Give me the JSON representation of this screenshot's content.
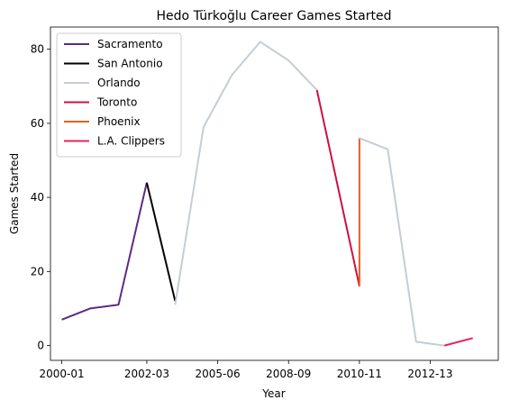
{
  "chart_data": {
    "type": "line",
    "title": "Hedo Türkoğlu Career Games Started",
    "xlabel": "Year",
    "ylabel": "Games Started",
    "xlim": [
      -0.4,
      15.4
    ],
    "ylim": [
      -4,
      86
    ],
    "y_ticks": [
      0,
      20,
      40,
      60,
      80
    ],
    "x_ticks": [
      {
        "pos": 0,
        "label": "2000-01"
      },
      {
        "pos": 3,
        "label": "2002-03"
      },
      {
        "pos": 5.5,
        "label": "2005-06"
      },
      {
        "pos": 8,
        "label": "2008-09"
      },
      {
        "pos": 10.5,
        "label": "2010-11"
      },
      {
        "pos": 13,
        "label": "2012-13"
      }
    ],
    "legend_position": "top-left",
    "grid": false,
    "series": [
      {
        "name": "Sacramento",
        "color": "#5b2c83",
        "x": [
          0,
          1,
          2,
          3
        ],
        "y": [
          7,
          10,
          11,
          44
        ]
      },
      {
        "name": "San Antonio",
        "color": "#000000",
        "x": [
          3,
          4
        ],
        "y": [
          44,
          12
        ]
      },
      {
        "name": "Orlando",
        "color": "#c4ced4",
        "x": [
          4,
          5,
          6,
          7,
          8,
          9
        ],
        "y": [
          11,
          59,
          73,
          82,
          77,
          69
        ]
      },
      {
        "name": "Toronto",
        "color": "#ce1141",
        "x": [
          9,
          10.5
        ],
        "y": [
          69,
          16
        ]
      },
      {
        "name": "Phoenix",
        "color": "#e56020",
        "x": [
          10.5,
          10.5
        ],
        "y": [
          16,
          56
        ]
      },
      {
        "name": "Orlando",
        "color": "#c4ced4",
        "x": [
          10.5,
          11.5,
          12.5,
          13.5
        ],
        "y": [
          56,
          53,
          1,
          0
        ],
        "legend": false
      },
      {
        "name": "L.A. Clippers",
        "color": "#e0245e",
        "x": [
          13.5,
          14.5
        ],
        "y": [
          0,
          2
        ]
      }
    ]
  }
}
